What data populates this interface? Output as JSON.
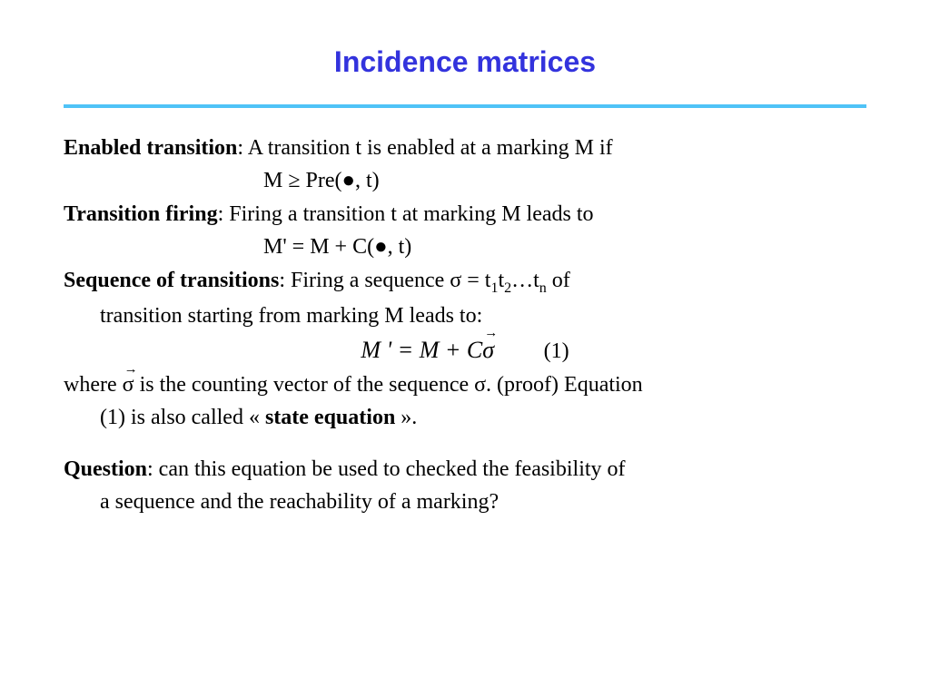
{
  "title": "Incidence matrices",
  "colors": {
    "title_color": "#3333dd",
    "divider_color": "#4fc3f7",
    "text_color": "#000000",
    "background": "#ffffff"
  },
  "typography": {
    "title_font": "Arial",
    "title_size_pt": 32,
    "title_weight": "bold",
    "body_font": "Times New Roman",
    "body_size_pt": 24
  },
  "defs": {
    "enabled_label": "Enabled transition",
    "enabled_text": ": A transition t is enabled at a marking M if",
    "enabled_formula": "M ≥ Pre(●, t)",
    "firing_label": "Transition firing",
    "firing_text": ": Firing a transition t at marking M leads to",
    "firing_formula": "M' = M + C(●, t)",
    "seq_label": "Sequence of transitions",
    "seq_text_a": ": Firing a sequence σ = t",
    "seq_sub1": "1",
    "seq_mid1": "t",
    "seq_sub2": "2",
    "seq_mid2": "…t",
    "seq_subn": "n",
    "seq_text_b": " of",
    "seq_text_c": "transition starting from marking M leads to:",
    "state_eq_M": "M",
    "state_eq_prime": " ' ",
    "state_eq_eq": "=",
    "state_eq_M2": " M ",
    "state_eq_plus": "+",
    "state_eq_C": " C",
    "state_eq_sigma": "σ",
    "state_eq_num": "(1)",
    "where_a": "where ",
    "where_sigma": "σ",
    "where_b": " is the counting vector of the sequence σ. (proof) Equation",
    "where_c": "(1) is also called « ",
    "state_eq_label": "state equation",
    "where_d": " ».",
    "question_label": "Question",
    "question_a": ": can this equation be used to checked the feasibility of",
    "question_b": "a sequence and the reachability of a marking?"
  }
}
